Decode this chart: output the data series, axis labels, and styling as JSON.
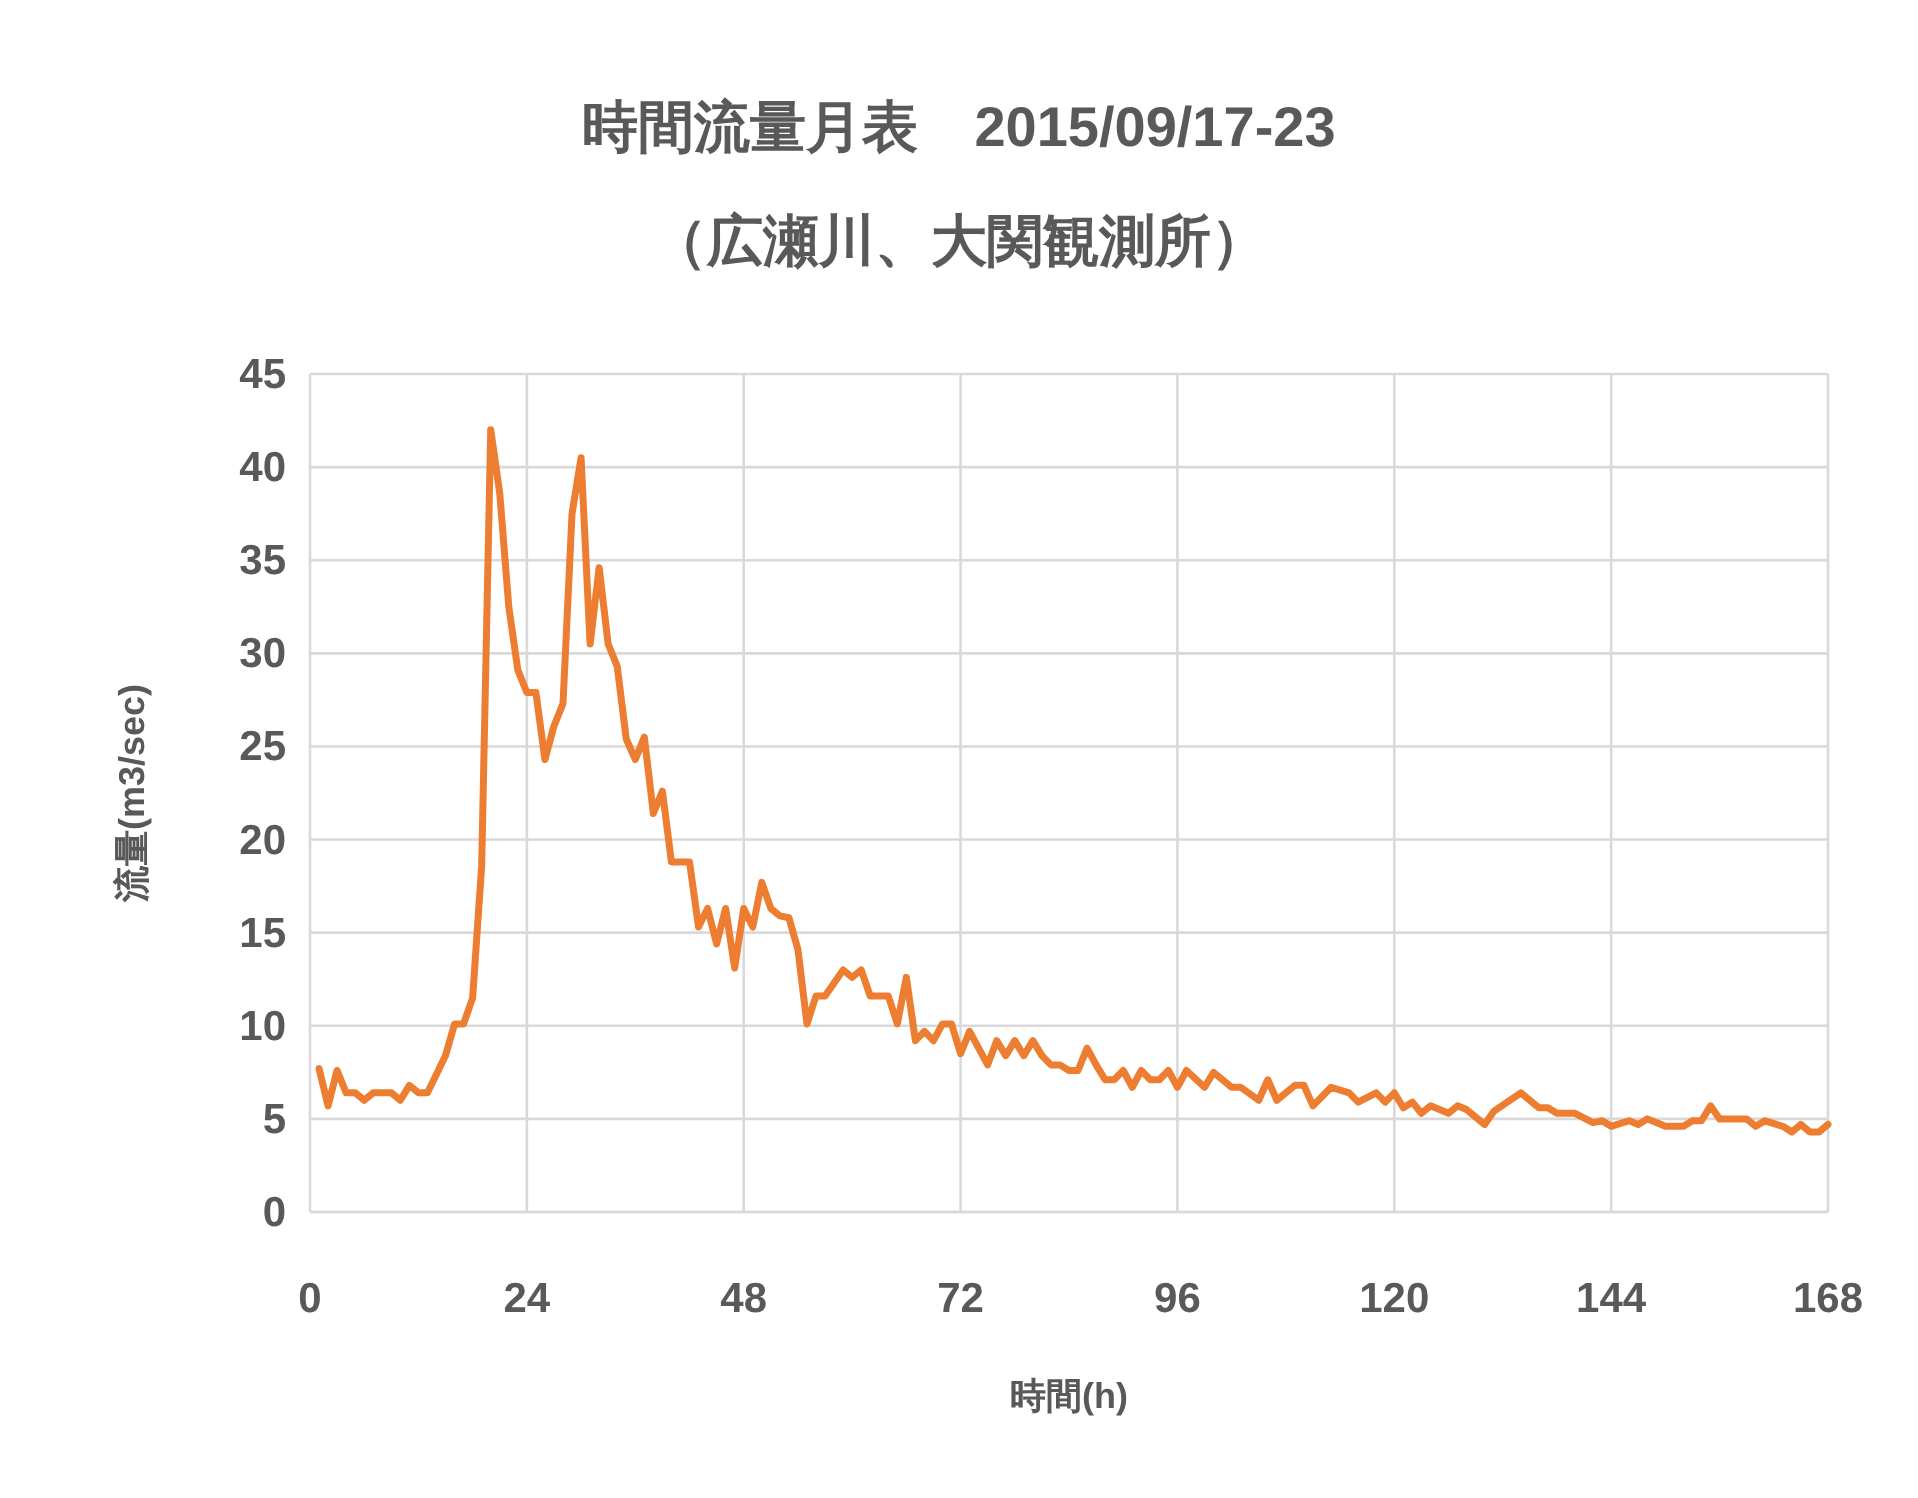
{
  "chart_data": {
    "type": "line",
    "title": "時間流量月表　2015/09/17-23",
    "subtitle": "（広瀬川、大関観測所）",
    "xlabel": "時間(h)",
    "ylabel": "流量(m3/sec)",
    "xlim": [
      0,
      168
    ],
    "xticks": [
      0,
      24,
      48,
      72,
      96,
      120,
      144,
      168
    ],
    "ylim": [
      0,
      45
    ],
    "yticks": [
      0,
      5,
      10,
      15,
      20,
      25,
      30,
      35,
      40,
      45
    ],
    "grid": true,
    "series": [
      {
        "color": "#ed7d31",
        "x": [
          1,
          2,
          3,
          4,
          5,
          6,
          7,
          9,
          10,
          11,
          12,
          13,
          14,
          15,
          16,
          17,
          18,
          19,
          20,
          21,
          22,
          23,
          24,
          25,
          26,
          27,
          28,
          29,
          30,
          31,
          32,
          33,
          34,
          35,
          36,
          37,
          38,
          39,
          40,
          42,
          43,
          44,
          45,
          46,
          47,
          48,
          49,
          50,
          51,
          52,
          53,
          54,
          55,
          56,
          57,
          59,
          60,
          61,
          62,
          64,
          65,
          66,
          67,
          68,
          69,
          70,
          71,
          72,
          73,
          75,
          76,
          77,
          78,
          79,
          80,
          81,
          82,
          83,
          84,
          85,
          86,
          87,
          88,
          89,
          90,
          91,
          92,
          93,
          94,
          95,
          96,
          97,
          99,
          100,
          102,
          103,
          105,
          106,
          107,
          109,
          110,
          111,
          113,
          115,
          116,
          118,
          119,
          120,
          121,
          122,
          123,
          124,
          126,
          127,
          128,
          130,
          131,
          134,
          136,
          137,
          138,
          140,
          142,
          143,
          144,
          146,
          147,
          148,
          150,
          152,
          153,
          154,
          155,
          156,
          159,
          160,
          161,
          163,
          164,
          165,
          166,
          167,
          168
        ],
        "values": [
          7.7,
          5.7,
          7.6,
          6.4,
          6.4,
          6.0,
          6.4,
          6.4,
          6.0,
          6.8,
          6.4,
          6.4,
          7.4,
          8.4,
          10.1,
          10.1,
          11.5,
          18.6,
          42.0,
          38.6,
          32.5,
          29.1,
          27.9,
          27.9,
          24.3,
          26.1,
          27.3,
          37.5,
          40.5,
          30.5,
          34.6,
          30.5,
          29.3,
          25.4,
          24.3,
          25.5,
          21.4,
          22.6,
          18.8,
          18.8,
          15.3,
          16.3,
          14.4,
          16.3,
          13.1,
          16.3,
          15.3,
          17.7,
          16.3,
          15.9,
          15.8,
          14.1,
          10.1,
          11.6,
          11.6,
          13.0,
          12.6,
          13.0,
          11.6,
          11.6,
          10.1,
          12.6,
          9.2,
          9.7,
          9.2,
          10.1,
          10.1,
          8.5,
          9.7,
          7.9,
          9.2,
          8.4,
          9.2,
          8.4,
          9.2,
          8.4,
          7.9,
          7.9,
          7.6,
          7.6,
          8.8,
          7.9,
          7.1,
          7.1,
          7.6,
          6.7,
          7.6,
          7.1,
          7.1,
          7.6,
          6.7,
          7.6,
          6.7,
          7.5,
          6.7,
          6.7,
          6.0,
          7.1,
          6.0,
          6.8,
          6.8,
          5.7,
          6.7,
          6.4,
          5.9,
          6.4,
          5.9,
          6.4,
          5.6,
          5.9,
          5.3,
          5.7,
          5.3,
          5.7,
          5.5,
          4.7,
          5.4,
          6.4,
          5.6,
          5.6,
          5.3,
          5.3,
          4.8,
          4.9,
          4.6,
          4.9,
          4.7,
          5.0,
          4.6,
          4.6,
          4.9,
          4.9,
          5.7,
          5.0,
          5.0,
          4.6,
          4.9,
          4.6,
          4.3,
          4.7,
          4.3,
          4.3,
          4.7
        ]
      }
    ]
  }
}
